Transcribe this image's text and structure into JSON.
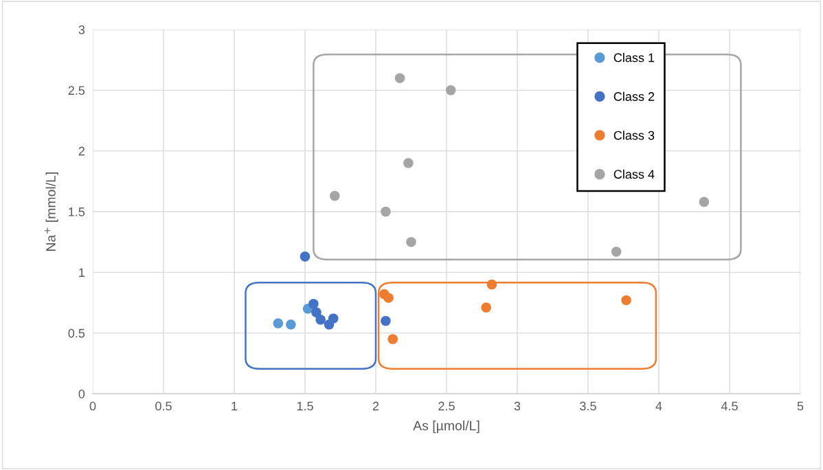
{
  "chart_data": {
    "type": "scatter",
    "xlabel": "As [µmol/L]",
    "ylabel": "Na$^{+}$ [mmol/L]",
    "xlim": [
      0,
      5
    ],
    "xticks": [
      0,
      0.5,
      1,
      1.5,
      2,
      2.5,
      3,
      3.5,
      4,
      4.5,
      5
    ],
    "ylim": [
      0,
      3
    ],
    "yticks": [
      0,
      0.5,
      1,
      1.5,
      2,
      2.5,
      3
    ],
    "grid": true,
    "legend": "top right",
    "marker": "circle",
    "series": [
      {
        "name": "Class 1",
        "color": "#5b9bd5",
        "x": [
          1.31,
          1.4,
          1.52
        ],
        "values": [
          0.58,
          0.57,
          0.7
        ]
      },
      {
        "name": "Class 2",
        "color": "#4472c4",
        "x": [
          1.5,
          1.56,
          1.58,
          1.61,
          1.67,
          1.7,
          2.07
        ],
        "values": [
          1.13,
          0.74,
          0.67,
          0.61,
          0.57,
          0.62,
          0.6
        ]
      },
      {
        "name": "Class 3",
        "color": "#ed7d31",
        "x": [
          2.06,
          2.09,
          2.12,
          2.78,
          2.82,
          3.77
        ],
        "values": [
          0.82,
          0.79,
          0.45,
          0.71,
          0.9,
          0.77
        ]
      },
      {
        "name": "Class 4",
        "color": "#a5a5a5",
        "x": [
          2.17,
          2.53,
          2.23,
          1.71,
          2.07,
          2.25,
          3.7,
          4.32
        ],
        "values": [
          2.6,
          2.5,
          1.9,
          1.63,
          1.5,
          1.25,
          1.17,
          1.58
        ]
      }
    ]
  }
}
